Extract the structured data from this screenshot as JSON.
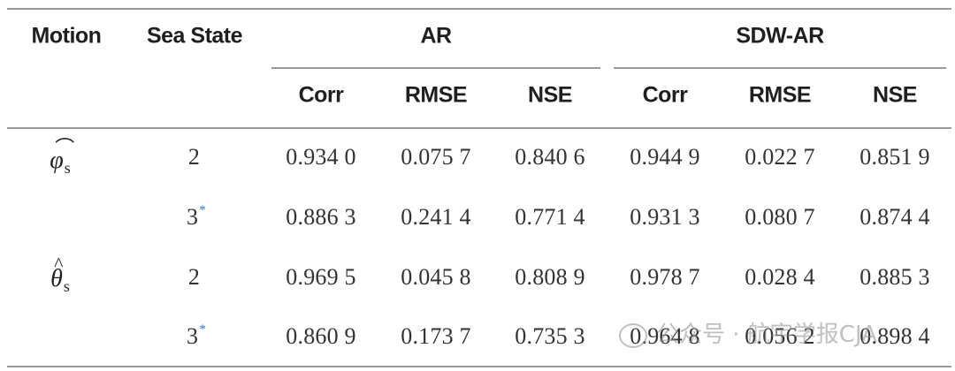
{
  "table": {
    "headers": {
      "motion": "Motion",
      "sea_state": "Sea State",
      "ar": "AR",
      "sdwar": "SDW-AR",
      "sub": [
        "Corr",
        "RMSE",
        "NSE",
        "Corr",
        "RMSE",
        "NSE"
      ]
    },
    "rows": [
      {
        "motion_symbol": "φ",
        "motion_sub": "s",
        "motion_accent": "⌒",
        "sea_state": "2",
        "asterisk": "",
        "values": [
          "0.934 0",
          "0.075 7",
          "0.840 6",
          "0.944 9",
          "0.022 7",
          "0.851 9"
        ]
      },
      {
        "motion_symbol": "",
        "motion_sub": "",
        "motion_accent": "",
        "sea_state": "3",
        "asterisk": "*",
        "values": [
          "0.886 3",
          "0.241 4",
          "0.771 4",
          "0.931 3",
          "0.080 7",
          "0.874 4"
        ]
      },
      {
        "motion_symbol": "θ",
        "motion_sub": "s",
        "motion_accent": "^",
        "sea_state": "2",
        "asterisk": "",
        "values": [
          "0.969 5",
          "0.045 8",
          "0.808 9",
          "0.978 7",
          "0.028 4",
          "0.885 3"
        ]
      },
      {
        "motion_symbol": "",
        "motion_sub": "",
        "motion_accent": "",
        "sea_state": "3",
        "asterisk": "*",
        "values": [
          "0.860 9",
          "0.173 7",
          "0.735 3",
          "0.964 8",
          "0.056 2",
          "0.898 4"
        ]
      }
    ]
  },
  "watermark": "公众号 · 航宇学报CJA"
}
